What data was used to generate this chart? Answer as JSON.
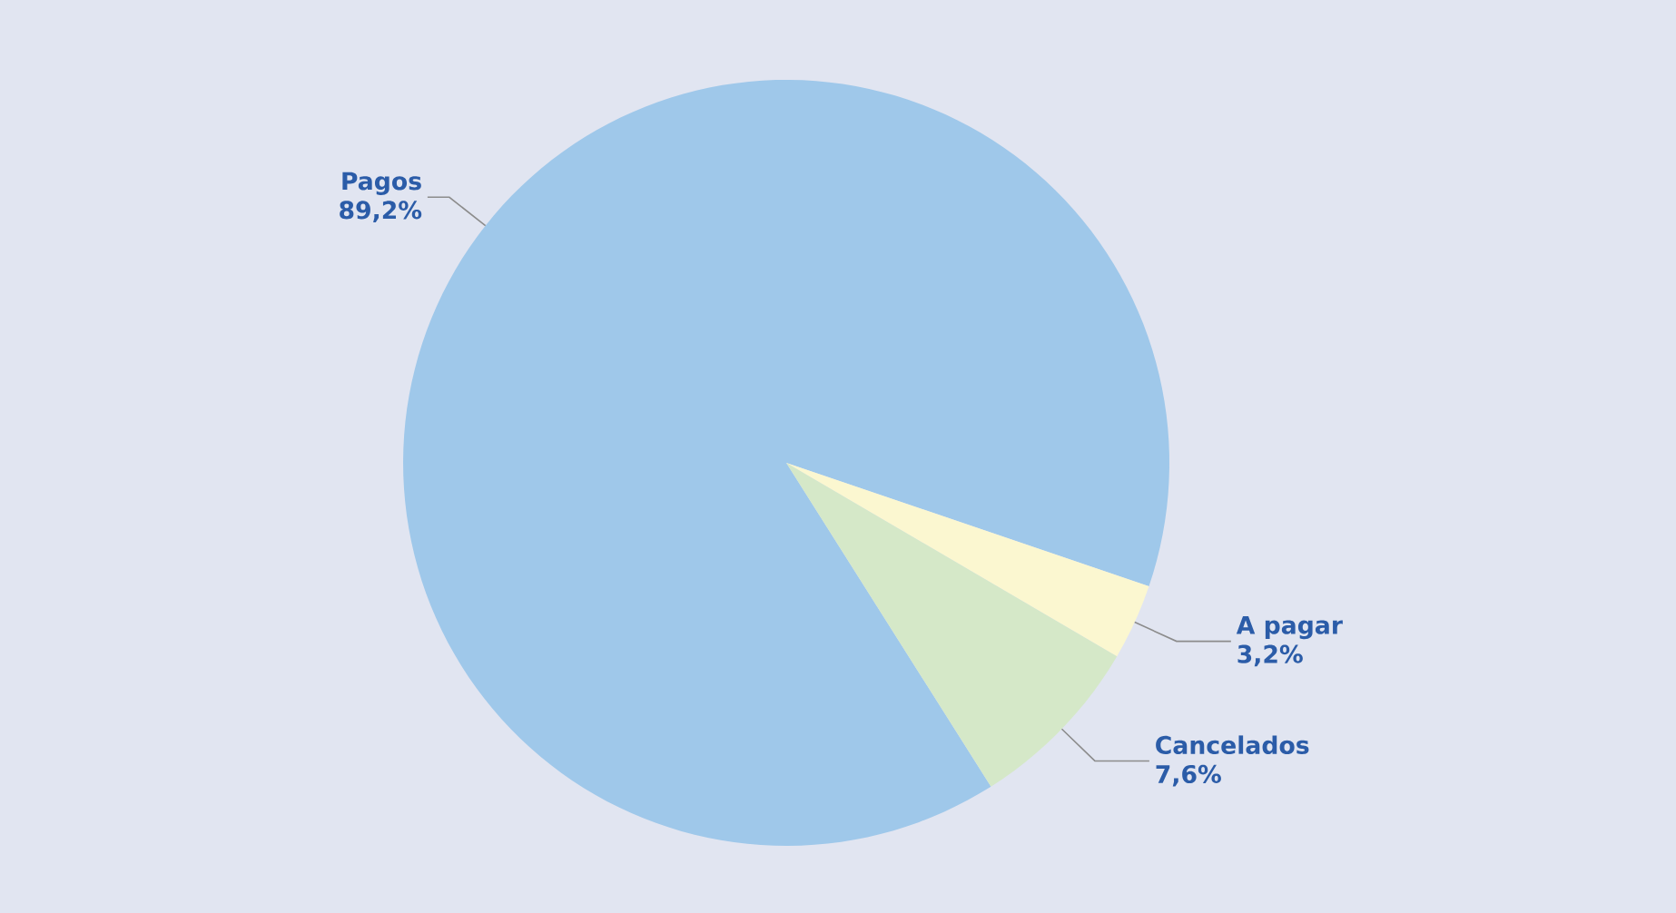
{
  "chart_data": {
    "type": "pie",
    "categories": [
      "Pagos",
      "A pagar",
      "Cancelados"
    ],
    "values": [
      89.2,
      3.2,
      7.6
    ],
    "value_labels": [
      "89,2%",
      "3,2%",
      "7,6%"
    ],
    "colors": [
      "#9fc8ea",
      "#fbf7d0",
      "#d5e8c8"
    ]
  }
}
